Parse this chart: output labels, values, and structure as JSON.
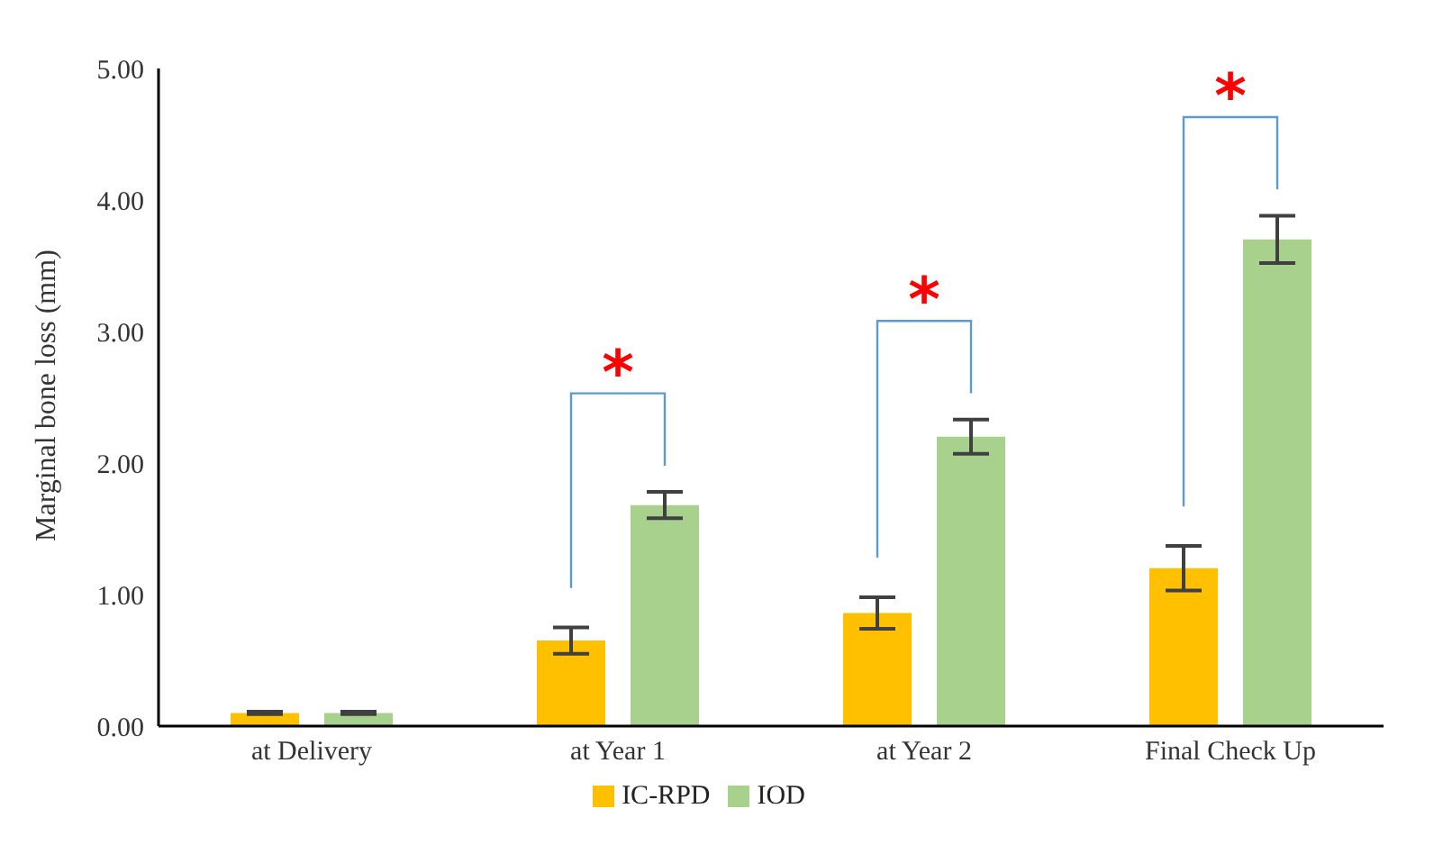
{
  "chart_data": {
    "type": "bar",
    "ylabel": "Marginal bone loss (mm)",
    "categories": [
      "at Delivery",
      "at Year 1",
      "at Year 2",
      "Final Check Up"
    ],
    "series": [
      {
        "name": "IC-RPD",
        "color": "#ffc000",
        "values": [
          0.1,
          0.65,
          0.86,
          1.2
        ],
        "errors": [
          0.01,
          0.1,
          0.12,
          0.17
        ]
      },
      {
        "name": "IOD",
        "color": "#a9d18e",
        "values": [
          0.1,
          1.68,
          2.2,
          3.7
        ],
        "errors": [
          0.01,
          0.1,
          0.13,
          0.18
        ]
      }
    ],
    "ylim": [
      0,
      5
    ],
    "yticks": [
      {
        "value": 0,
        "label": "0.00"
      },
      {
        "value": 1,
        "label": "1.00"
      },
      {
        "value": 2,
        "label": "2.00"
      },
      {
        "value": 3,
        "label": "3.00"
      },
      {
        "value": 4,
        "label": "4.00"
      },
      {
        "value": 5,
        "label": "5.00"
      }
    ],
    "annotations": [
      "*",
      "*",
      "*"
    ],
    "grid": false,
    "legend": "bottom"
  }
}
